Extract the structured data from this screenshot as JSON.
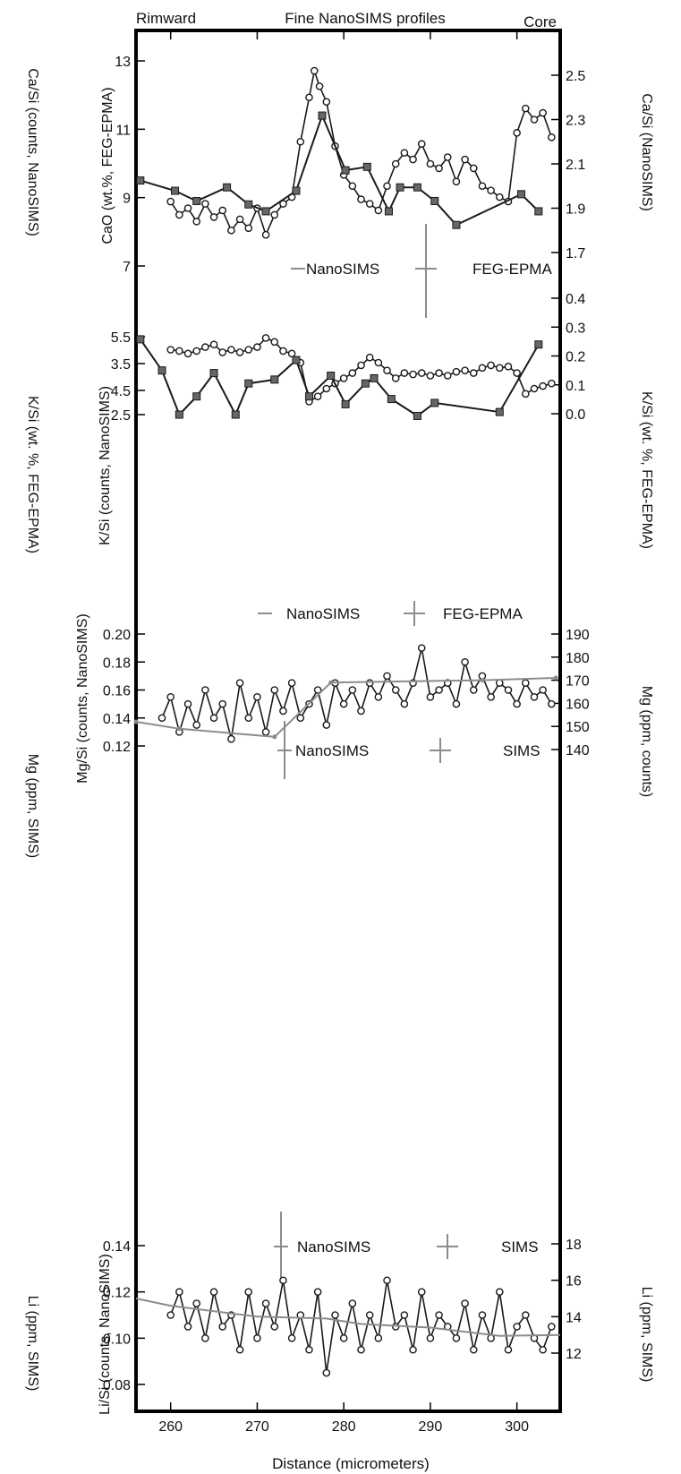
{
  "header": {
    "left": "Rimward",
    "center": "Fine NanoSIMS profiles",
    "right": "Core"
  },
  "xaxis": {
    "label": "Distance (micrometers)",
    "range": [
      256,
      305
    ],
    "ticks": [
      "260",
      "270",
      "280",
      "290",
      "300"
    ]
  },
  "colors": {
    "nano": "#1a1a1a",
    "second": "#8c8c8c",
    "frame": "#000000",
    "marker_fill": "#ffffff",
    "square_fill": "#666666"
  },
  "chart_data": [
    {
      "type": "line",
      "panel": "CaO",
      "ylabel_left": "CaO (wt.%, FEG-EPMA)",
      "ylabel_outer_left": "Ca/Si (counts, NanoSIMS)",
      "ylabel_right": "Ca/Si (NanoSIMS)",
      "left_ticks": [
        "7",
        "9",
        "11",
        "13"
      ],
      "left_range": [
        6.5,
        13.8
      ],
      "right_ticks": [
        "1.7",
        "1.9",
        "2.1",
        "2.3",
        "2.5"
      ],
      "legend": [
        "NanoSIMS",
        "FEG-EPMA"
      ],
      "series": [
        {
          "name": "NanoSIMS",
          "axis": "right",
          "marker": "circle",
          "x": [
            260,
            261,
            262,
            263,
            264,
            265,
            266,
            267,
            268,
            269,
            270,
            271,
            272,
            273,
            274,
            275,
            276,
            276.6,
            277.2,
            278,
            279,
            280,
            281,
            282,
            283,
            284,
            285,
            286,
            287,
            288,
            289,
            290,
            291,
            292,
            293,
            294,
            295,
            296,
            297,
            298,
            299,
            300,
            301,
            302,
            303,
            304
          ],
          "y": [
            1.93,
            1.87,
            1.9,
            1.84,
            1.92,
            1.86,
            1.89,
            1.8,
            1.85,
            1.81,
            1.9,
            1.78,
            1.87,
            1.92,
            1.95,
            2.2,
            2.4,
            2.52,
            2.45,
            2.38,
            2.18,
            2.05,
            2.0,
            1.94,
            1.92,
            1.89,
            2.0,
            2.1,
            2.15,
            2.12,
            2.19,
            2.1,
            2.08,
            2.13,
            2.02,
            2.12,
            2.08,
            2.0,
            1.98,
            1.95,
            1.93,
            2.24,
            2.35,
            2.3,
            2.33,
            2.22
          ]
        },
        {
          "name": "FEG-EPMA",
          "axis": "left",
          "marker": "square",
          "x": [
            256.5,
            260.5,
            263,
            266.5,
            269,
            271,
            274.5,
            277.5,
            280.2,
            282.7,
            285.2,
            286.5,
            288.5,
            290.5,
            293,
            300.5,
            302.5
          ],
          "y": [
            9.5,
            9.2,
            8.9,
            9.3,
            8.8,
            8.6,
            9.2,
            11.4,
            9.8,
            9.9,
            8.6,
            9.3,
            9.3,
            8.9,
            8.2,
            9.1,
            8.6
          ]
        }
      ]
    },
    {
      "type": "line",
      "panel": "K",
      "ylabel_left": "K/Si (counts, NanoSIMS)",
      "ylabel_outer_left": "K/Si (wt. %, FEG-EPMA)",
      "ylabel_right": "K/Si (wt. %, FEG-EPMA)",
      "left_ticks": [
        "2.5",
        "3.5",
        "4.5",
        "5.5"
      ],
      "left_range": [
        2.2,
        5.9
      ],
      "right_ticks": [
        "0.0",
        "0.1",
        "0.2",
        "0.3",
        "0.4"
      ],
      "legend": [
        "NanoSIMS",
        "FEG-EPMA"
      ],
      "series": [
        {
          "name": "NanoSIMS",
          "axis": "left",
          "marker": "circle",
          "x": [
            260,
            261,
            262,
            263,
            264,
            265,
            266,
            267,
            268,
            269,
            270,
            271,
            272,
            273,
            274,
            275,
            276,
            277,
            278,
            279,
            280,
            281,
            282,
            283,
            284,
            285,
            286,
            287,
            288,
            289,
            290,
            291,
            292,
            293,
            294,
            295,
            296,
            297,
            298,
            299,
            300,
            301,
            302,
            303,
            304
          ],
          "y": [
            5.0,
            4.95,
            4.85,
            4.95,
            5.1,
            5.2,
            4.9,
            5.0,
            4.9,
            5.0,
            5.1,
            5.45,
            5.3,
            4.95,
            4.85,
            4.5,
            3.0,
            3.2,
            3.5,
            3.7,
            3.9,
            4.1,
            4.4,
            4.7,
            4.5,
            4.2,
            3.9,
            4.1,
            4.05,
            4.1,
            4.0,
            4.1,
            4.0,
            4.15,
            4.2,
            4.1,
            4.3,
            4.4,
            4.3,
            4.35,
            4.1,
            3.3,
            3.5,
            3.6,
            3.7
          ]
        },
        {
          "name": "FEG-EPMA",
          "axis": "left",
          "marker": "square",
          "x": [
            256.5,
            259,
            261,
            263,
            265,
            267.5,
            269,
            272,
            274.5,
            276,
            278.5,
            280.2,
            282.5,
            283.5,
            285.5,
            288.5,
            290.5,
            298,
            302.5
          ],
          "y": [
            5.4,
            4.2,
            2.5,
            3.2,
            4.1,
            2.5,
            3.7,
            3.85,
            4.6,
            3.2,
            4.0,
            2.9,
            3.7,
            3.9,
            3.1,
            2.45,
            2.95,
            2.6,
            5.2
          ]
        }
      ]
    },
    {
      "type": "line",
      "panel": "Mg",
      "ylabel_left": "Mg/Si (counts, NanoSIMS)",
      "ylabel_outer_left": "Mg (ppm, SIMS)",
      "ylabel_right": "Mg (ppm, counts)",
      "left_ticks": [
        "0.12",
        "0.14",
        "0.16",
        "0.18",
        "0.20"
      ],
      "left_range": [
        0.1,
        0.205
      ],
      "right_ticks": [
        "140",
        "150",
        "160",
        "170",
        "180",
        "190"
      ],
      "right_range": [
        130,
        192
      ],
      "legend": [
        "NanoSIMS",
        "SIMS"
      ],
      "series": [
        {
          "name": "NanoSIMS",
          "axis": "left",
          "marker": "circle",
          "x": [
            259,
            260,
            261,
            262,
            263,
            264,
            265,
            266,
            267,
            268,
            269,
            270,
            271,
            272,
            273,
            274,
            275,
            276,
            277,
            278,
            279,
            280,
            281,
            282,
            283,
            284,
            285,
            286,
            287,
            288,
            289,
            290,
            291,
            292,
            293,
            294,
            295,
            296,
            297,
            298,
            299,
            300,
            301,
            302,
            303,
            304
          ],
          "y": [
            0.14,
            0.155,
            0.13,
            0.15,
            0.135,
            0.16,
            0.14,
            0.15,
            0.125,
            0.165,
            0.14,
            0.155,
            0.13,
            0.16,
            0.145,
            0.165,
            0.14,
            0.15,
            0.16,
            0.135,
            0.165,
            0.15,
            0.16,
            0.145,
            0.165,
            0.155,
            0.17,
            0.16,
            0.15,
            0.165,
            0.19,
            0.155,
            0.16,
            0.165,
            0.15,
            0.18,
            0.16,
            0.17,
            0.155,
            0.165,
            0.16,
            0.15,
            0.165,
            0.155,
            0.16,
            0.15
          ]
        },
        {
          "name": "SIMS",
          "axis": "right",
          "marker": "dot",
          "x": [
            256,
            261,
            272,
            278.5,
            296,
            304.5
          ],
          "y": [
            152,
            149,
            145.5,
            169,
            170,
            171
          ]
        }
      ]
    },
    {
      "type": "line",
      "panel": "Li",
      "ylabel_left": "Li/Si (counts, NanoSIMS)",
      "ylabel_outer_left": "Li (ppm, SIMS)",
      "ylabel_right": "Li (ppm, SIMS)",
      "left_ticks": [
        "0.08",
        "0.10",
        "0.12",
        "0.14"
      ],
      "left_range": [
        0.08,
        0.15
      ],
      "right_ticks": [
        "12",
        "14",
        "16",
        "18"
      ],
      "right_range": [
        11.1,
        19.1
      ],
      "legend": [
        "NanoSIMS",
        "SIMS"
      ],
      "series": [
        {
          "name": "NanoSIMS",
          "axis": "left",
          "marker": "circle",
          "x": [
            260,
            261,
            262,
            263,
            264,
            265,
            266,
            267,
            268,
            269,
            270,
            271,
            272,
            273,
            274,
            275,
            276,
            277,
            278,
            279,
            280,
            281,
            282,
            283,
            284,
            285,
            286,
            287,
            288,
            289,
            290,
            291,
            292,
            293,
            294,
            295,
            296,
            297,
            298,
            299,
            300,
            301,
            302,
            303,
            304
          ],
          "y": [
            0.11,
            0.12,
            0.105,
            0.115,
            0.1,
            0.12,
            0.105,
            0.11,
            0.095,
            0.12,
            0.1,
            0.115,
            0.105,
            0.125,
            0.1,
            0.11,
            0.095,
            0.12,
            0.085,
            0.11,
            0.1,
            0.115,
            0.095,
            0.11,
            0.1,
            0.125,
            0.105,
            0.11,
            0.095,
            0.12,
            0.1,
            0.11,
            0.105,
            0.1,
            0.115,
            0.095,
            0.11,
            0.1,
            0.12,
            0.095,
            0.105,
            0.11,
            0.1,
            0.095,
            0.105
          ]
        },
        {
          "name": "SIMS",
          "axis": "right",
          "marker": "none",
          "x": [
            256,
            260,
            270,
            278,
            282,
            290,
            298,
            305
          ],
          "y": [
            15.0,
            14.6,
            14.0,
            13.9,
            13.6,
            13.4,
            12.95,
            13.0
          ]
        }
      ]
    }
  ]
}
